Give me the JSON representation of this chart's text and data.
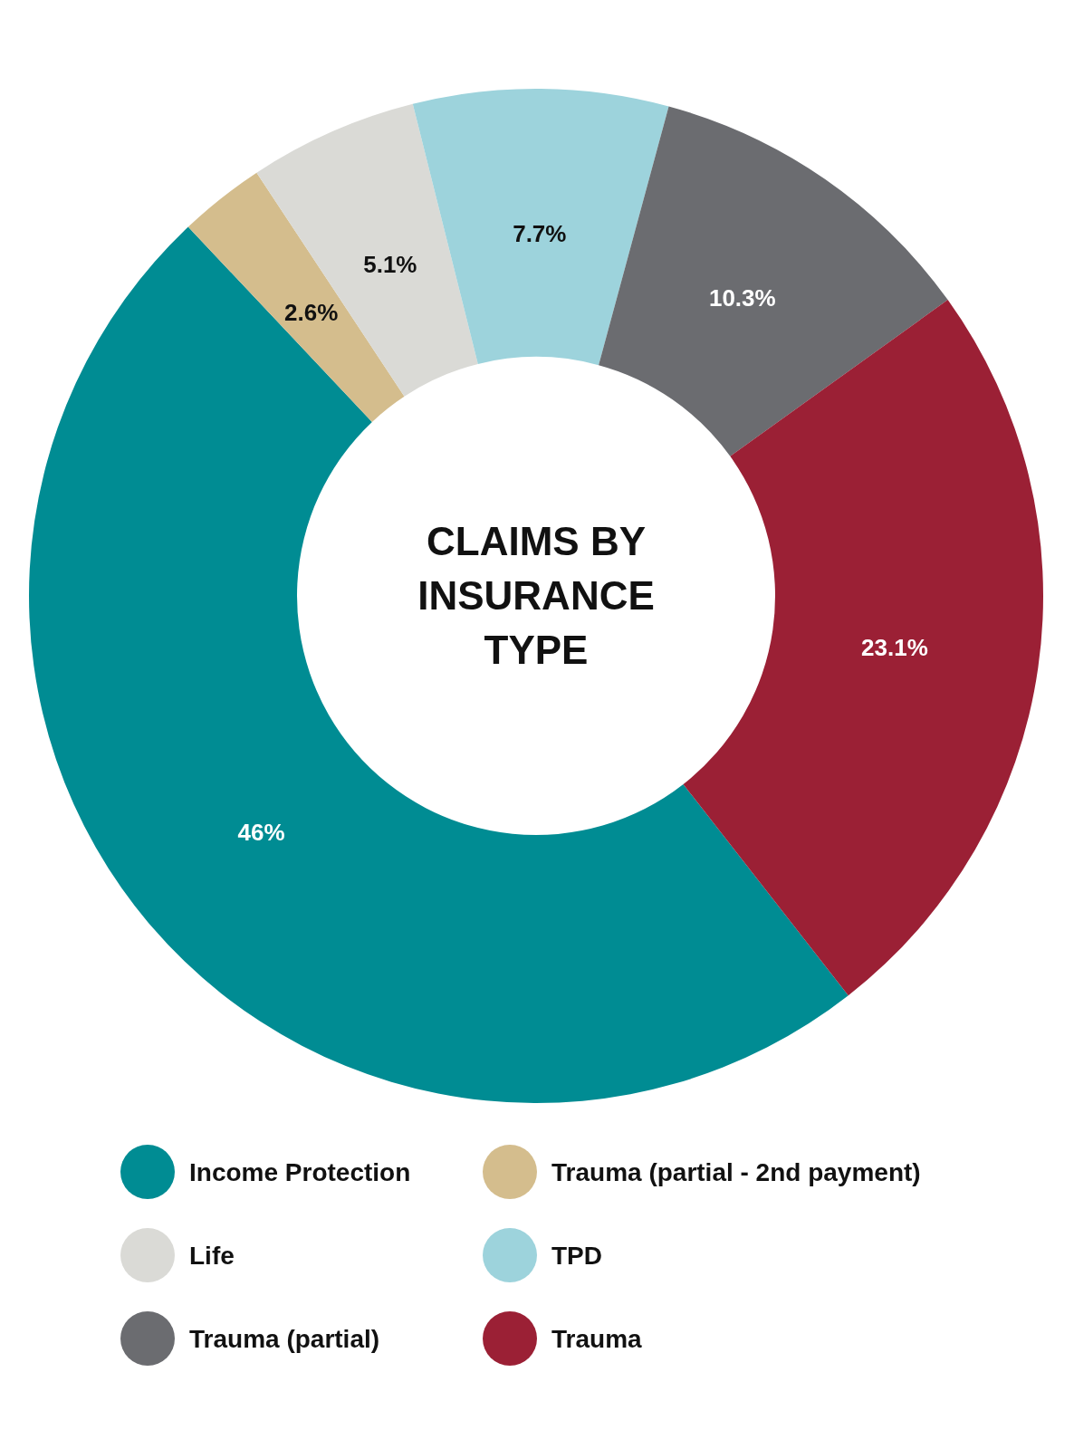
{
  "chart_data": {
    "type": "donut",
    "title": "CLAIMS BY INSURANCE TYPE",
    "categories": [
      "Income Protection",
      "Trauma (partial - 2nd payment)",
      "Life",
      "TPD",
      "Trauma (partial)",
      "Trauma"
    ],
    "values": [
      46,
      2.6,
      5.1,
      7.7,
      10.3,
      23.1
    ],
    "value_labels": [
      "46%",
      "2.6%",
      "5.1%",
      "7.7%",
      "10.3%",
      "23.1%"
    ],
    "colors": [
      "#008c93",
      "#d4bd8d",
      "#dadad6",
      "#9dd3dc",
      "#6b6c70",
      "#9b2035"
    ],
    "legend": "bottom"
  }
}
